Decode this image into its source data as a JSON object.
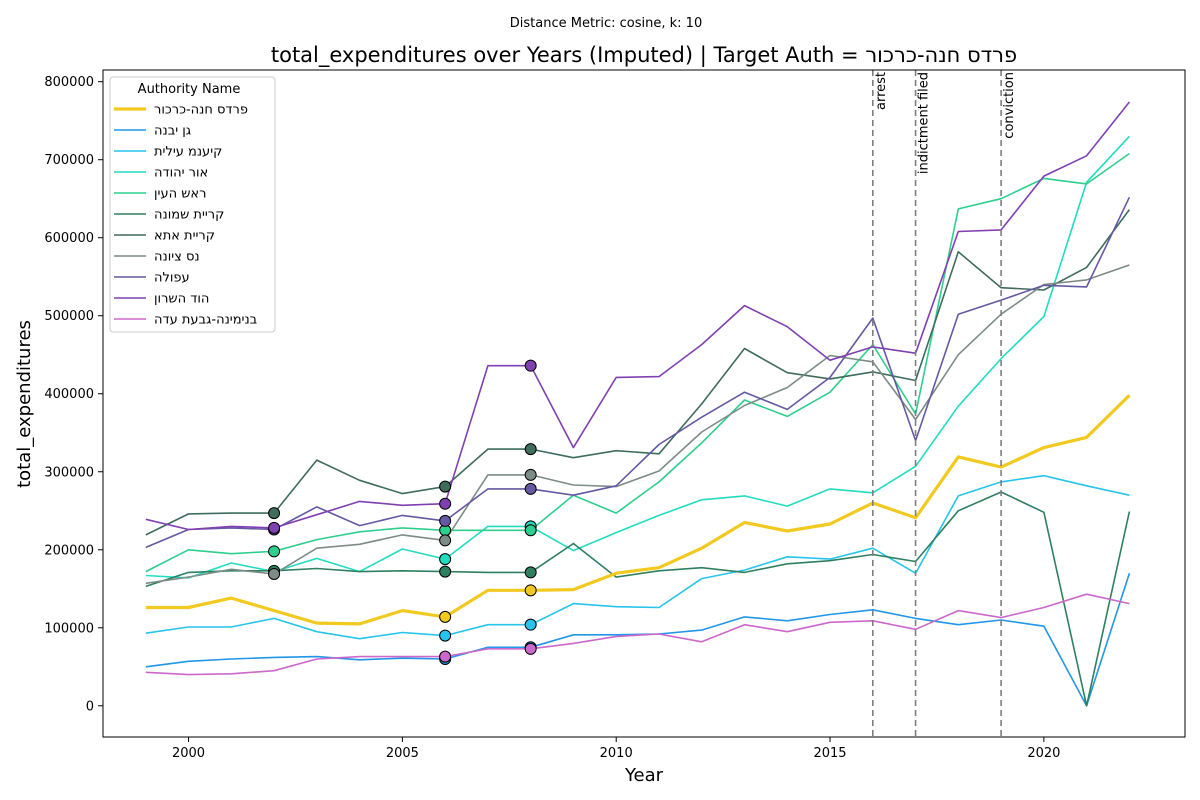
{
  "chart_data": {
    "type": "line",
    "title": "total_expenditures over Years (Imputed) | Target Auth = פרדס חנה-כרכור",
    "subtitle": "Distance Metric: cosine, k: 10",
    "xlabel": "Year",
    "ylabel": "total_expenditures",
    "xlim": [
      1998,
      2023.3
    ],
    "ylim": [
      -40000,
      815000
    ],
    "x_ticks": [
      2000,
      2005,
      2010,
      2015,
      2020
    ],
    "y_ticks": [
      0,
      100000,
      200000,
      300000,
      400000,
      500000,
      600000,
      700000,
      800000
    ],
    "grid": false,
    "legend": {
      "title": "Authority Name",
      "placement": "top-left"
    },
    "x": [
      1999,
      2000,
      2001,
      2002,
      2003,
      2004,
      2005,
      2006,
      2007,
      2008,
      2009,
      2010,
      2011,
      2012,
      2013,
      2014,
      2015,
      2016,
      2017,
      2018,
      2019,
      2020,
      2021,
      2022
    ],
    "events": [
      {
        "x": 2016,
        "label": "arrest"
      },
      {
        "x": 2017,
        "label": "indictment filed"
      },
      {
        "x": 2019,
        "label": "conviction"
      }
    ],
    "series": [
      {
        "name": "פרדס חנה-כרכור",
        "color": "#f2c91f",
        "target": true,
        "values": [
          126000,
          126000,
          138000,
          122000,
          106000,
          105000,
          122000,
          114000,
          148000,
          148000,
          149000,
          170000,
          177000,
          202000,
          235000,
          224000,
          233000,
          260000,
          241000,
          319000,
          306000,
          331000,
          344000,
          398000
        ],
        "imputed_x": [
          2006,
          2008
        ]
      },
      {
        "name": "גן יבנה",
        "color": "#2296e8",
        "values": [
          50000,
          57000,
          60000,
          62000,
          63000,
          59000,
          61000,
          60000,
          75000,
          75000,
          91000,
          91000,
          92000,
          97000,
          114000,
          109000,
          117000,
          123000,
          112000,
          104000,
          110000,
          102000,
          0,
          170000
        ],
        "imputed_x": [
          2006,
          2008
        ]
      },
      {
        "name": "קיענמ עילית",
        "color": "#27c4ec",
        "values": [
          93000,
          101000,
          101000,
          112000,
          95000,
          86000,
          94000,
          90000,
          104000,
          104000,
          131000,
          127000,
          126000,
          163000,
          174000,
          191000,
          188000,
          202000,
          170000,
          269000,
          287000,
          295000,
          282000,
          270000
        ],
        "imputed_x": [
          2006,
          2008
        ]
      },
      {
        "name": "אור יהודה",
        "color": "#22dcc0",
        "values": [
          167000,
          164000,
          183000,
          172000,
          189000,
          172000,
          201000,
          188000,
          230000,
          230000,
          199000,
          222000,
          244000,
          264000,
          269000,
          256000,
          278000,
          273000,
          307000,
          384000,
          445000,
          499000,
          671000,
          730000
        ],
        "imputed_x": [
          2006,
          2008
        ]
      },
      {
        "name": "ראש העין",
        "color": "#2ecf8e",
        "values": [
          172000,
          200000,
          195000,
          198000,
          213000,
          223000,
          228000,
          225000,
          225000,
          225000,
          270000,
          247000,
          287000,
          337000,
          392000,
          371000,
          402000,
          463000,
          374000,
          637000,
          650000,
          676000,
          669000,
          708000
        ],
        "imputed_x": [
          2002,
          2006,
          2008
        ]
      },
      {
        "name": "קריית שמונה",
        "color": "#2e8060",
        "values": [
          153000,
          171000,
          173000,
          173000,
          176000,
          172000,
          173000,
          172000,
          171000,
          171000,
          208000,
          165000,
          173000,
          177000,
          171000,
          182000,
          186000,
          194000,
          185000,
          250000,
          274000,
          248000,
          0,
          249000
        ],
        "imputed_x": [
          2002,
          2006,
          2008
        ]
      },
      {
        "name": "קריית אתא",
        "color": "#3f6d5c",
        "values": [
          219000,
          246000,
          247000,
          247000,
          315000,
          289000,
          272000,
          281000,
          329000,
          329000,
          318000,
          327000,
          323000,
          387000,
          458000,
          427000,
          419000,
          428000,
          417000,
          582000,
          536000,
          533000,
          562000,
          636000
        ],
        "imputed_x": [
          2002,
          2006,
          2008
        ]
      },
      {
        "name": "נס ציונה",
        "color": "#7d8c86",
        "values": [
          157000,
          165000,
          175000,
          169000,
          202000,
          207000,
          219000,
          212000,
          296000,
          296000,
          283000,
          281000,
          301000,
          351000,
          385000,
          408000,
          449000,
          441000,
          367000,
          450000,
          502000,
          540000,
          546000,
          565000
        ],
        "imputed_x": [
          2002,
          2006,
          2008
        ]
      },
      {
        "name": "עפולה",
        "color": "#6559a4",
        "values": [
          203000,
          226000,
          228000,
          226000,
          255000,
          231000,
          244000,
          237000,
          278000,
          278000,
          270000,
          282000,
          335000,
          370000,
          402000,
          380000,
          421000,
          497000,
          340000,
          502000,
          520000,
          539000,
          537000,
          652000
        ],
        "imputed_x": [
          2002,
          2006,
          2008
        ]
      },
      {
        "name": "הוד השרון",
        "color": "#8040b2",
        "values": [
          239000,
          226000,
          230000,
          228000,
          245000,
          262000,
          257000,
          259000,
          436000,
          436000,
          331000,
          421000,
          422000,
          463000,
          513000,
          486000,
          443000,
          460000,
          452000,
          608000,
          610000,
          679000,
          705000,
          774000
        ],
        "imputed_x": [
          2002,
          2006,
          2008
        ]
      },
      {
        "name": "בנימינה-גבעת עדה",
        "color": "#cc68cc",
        "values": [
          43000,
          40000,
          41000,
          45000,
          60000,
          63000,
          63000,
          63000,
          73000,
          73000,
          80000,
          89000,
          92000,
          82000,
          104000,
          95000,
          107000,
          109000,
          98000,
          122000,
          113000,
          126000,
          143000,
          131000
        ],
        "imputed_x": [
          2006,
          2008
        ]
      }
    ]
  }
}
